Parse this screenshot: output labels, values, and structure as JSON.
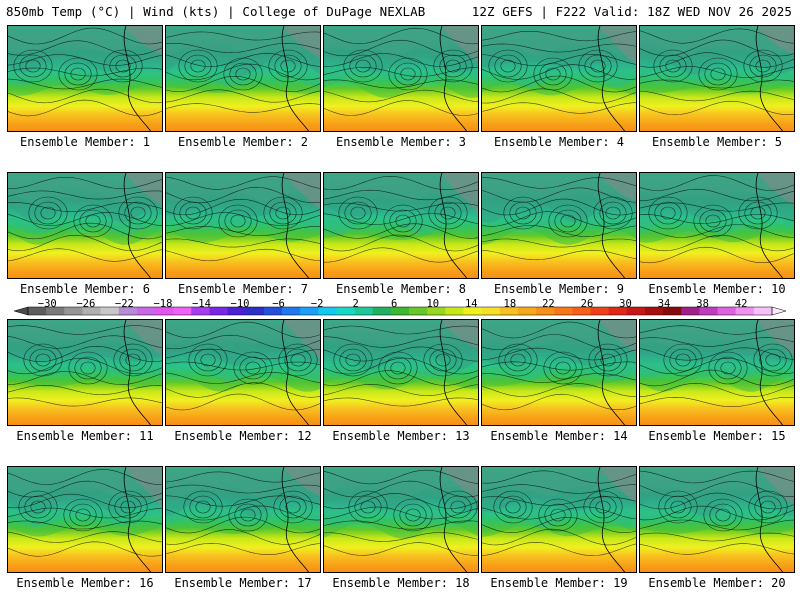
{
  "header": {
    "left_title": "850mb Temp (°C) | Wind (kts) | College of DuPage NEXLAB",
    "right_title": "12Z GEFS | F222 Valid: 18Z WED NOV 26 2025"
  },
  "panels": [
    {
      "label": "Ensemble Member: 1"
    },
    {
      "label": "Ensemble Member: 2"
    },
    {
      "label": "Ensemble Member: 3"
    },
    {
      "label": "Ensemble Member: 4"
    },
    {
      "label": "Ensemble Member: 5"
    },
    {
      "label": "Ensemble Member: 6"
    },
    {
      "label": "Ensemble Member: 7"
    },
    {
      "label": "Ensemble Member: 8"
    },
    {
      "label": "Ensemble Member: 9"
    },
    {
      "label": "Ensemble Member: 10"
    },
    {
      "label": "Ensemble Member: 11"
    },
    {
      "label": "Ensemble Member: 12"
    },
    {
      "label": "Ensemble Member: 13"
    },
    {
      "label": "Ensemble Member: 14"
    },
    {
      "label": "Ensemble Member: 15"
    },
    {
      "label": "Ensemble Member: 16"
    },
    {
      "label": "Ensemble Member: 17"
    },
    {
      "label": "Ensemble Member: 18"
    },
    {
      "label": "Ensemble Member: 19"
    },
    {
      "label": "Ensemble Member: 20"
    }
  ],
  "colorbar": {
    "ticks": [
      "−30",
      "−26",
      "−22",
      "−18",
      "−14",
      "−10",
      "−6",
      "−2",
      "2",
      "6",
      "10",
      "14",
      "18",
      "22",
      "26",
      "30",
      "34",
      "38",
      "42"
    ],
    "colors": [
      "#5e5e5e",
      "#7a7a7a",
      "#969696",
      "#b0b0b0",
      "#c8c8c8",
      "#b88ad8",
      "#cc66e8",
      "#e255f0",
      "#f060f8",
      "#a83cf0",
      "#7a28e8",
      "#4c20d8",
      "#2a30c8",
      "#2450e0",
      "#1e78f0",
      "#1aa0f8",
      "#14c8f0",
      "#18d8c8",
      "#1ec898",
      "#22b060",
      "#3cb830",
      "#68c828",
      "#98d820",
      "#c8e818",
      "#f0f020",
      "#f8e028",
      "#f8c020",
      "#f8a818",
      "#f89018",
      "#f87818",
      "#f86018",
      "#f04018",
      "#e02818",
      "#c81818",
      "#a81010",
      "#880c0c",
      "#a0208c",
      "#c03cc0",
      "#e060e0",
      "#f090f0",
      "#f8c0f8"
    ]
  },
  "map_gradient": [
    "#7ff0f8",
    "#c83cf0",
    "#a82ce8",
    "#3a2ed0",
    "#1e6ef0",
    "#14c8f0",
    "#1ec898",
    "#60c828",
    "#c8e818",
    "#f0f020",
    "#f8c020",
    "#f8a018",
    "#f88818"
  ]
}
